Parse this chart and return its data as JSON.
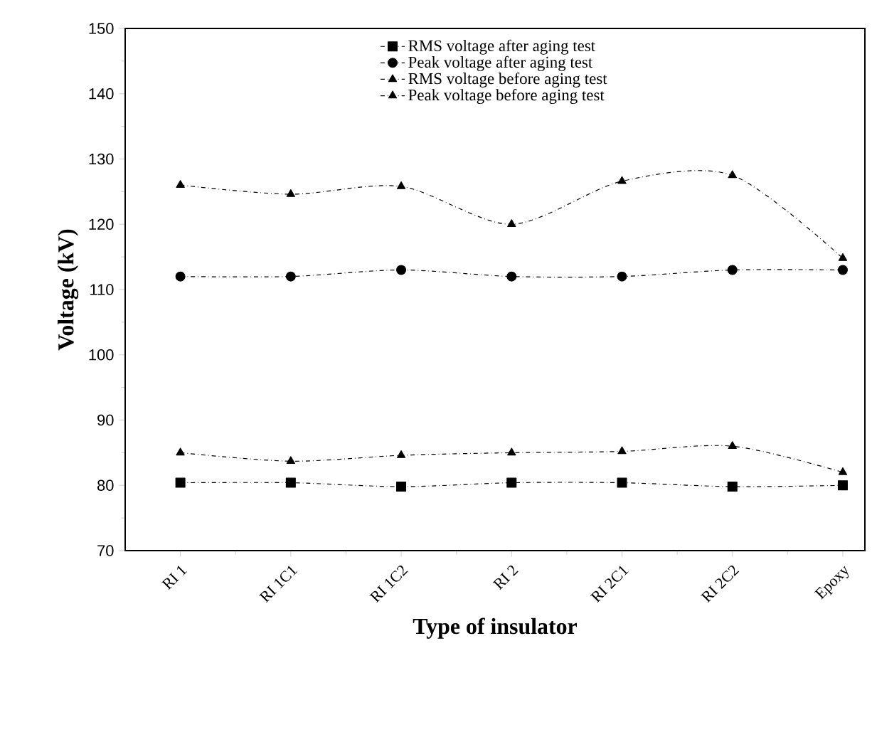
{
  "chart_data": {
    "type": "line",
    "xlabel": "Type of insulator",
    "ylabel": "Voltage (kV)",
    "categories": [
      "RI 1",
      "RI 1C1",
      "RI 1C2",
      "RI 2",
      "RI 2C1",
      "RI 2C2",
      "Epoxy"
    ],
    "ylim": [
      70,
      150
    ],
    "yticks": [
      70,
      80,
      90,
      100,
      110,
      120,
      130,
      140,
      150
    ],
    "legend": "top",
    "line_style": "dashed",
    "grid": false,
    "series": [
      {
        "name": "RMS voltage after aging test",
        "color": "#000000",
        "marker": "square",
        "values": [
          80.4,
          80.4,
          79.8,
          80.4,
          80.4,
          79.8,
          80.0
        ]
      },
      {
        "name": "Peak voltage after aging test",
        "color": "#000000",
        "marker": "circle",
        "values": [
          112,
          112,
          113,
          112,
          112,
          113,
          113
        ]
      },
      {
        "name": "RMS voltage before aging test",
        "color": "#000000",
        "marker": "triangle",
        "values": [
          85,
          83.7,
          84.6,
          85,
          85.2,
          86,
          82
        ]
      },
      {
        "name": "Peak voltage before aging test",
        "color": "#000000",
        "marker": "triangle-down",
        "values": [
          126,
          124.6,
          125.8,
          120,
          126.6,
          127.5,
          114.8
        ]
      }
    ]
  }
}
